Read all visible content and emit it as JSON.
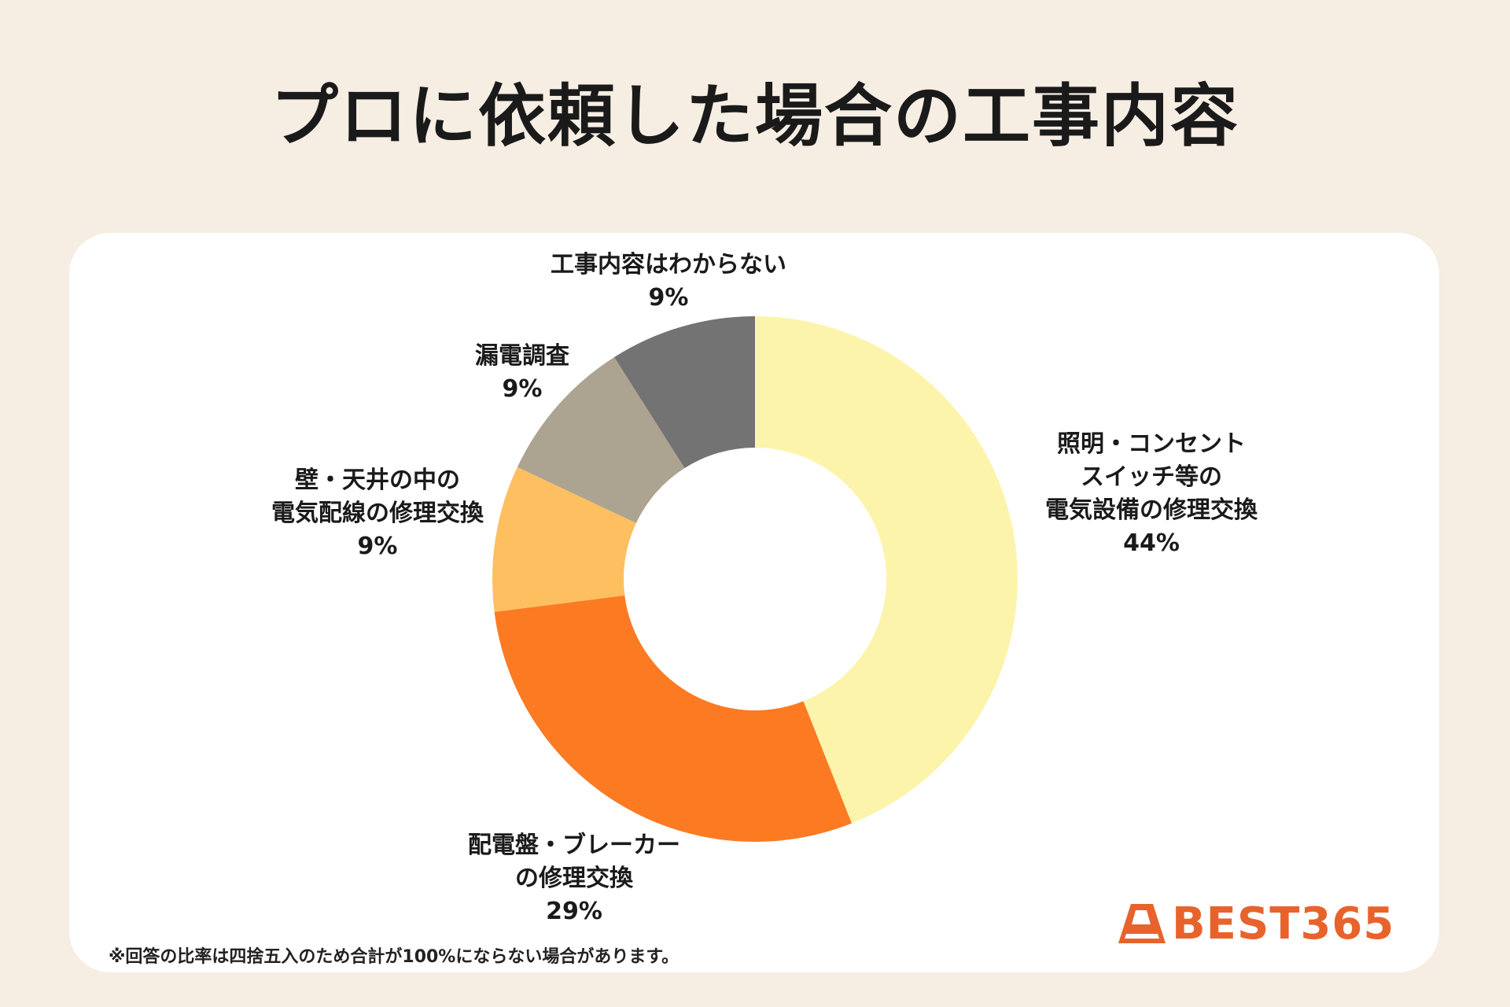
{
  "title": "プロに依頼した場合の工事内容",
  "footnote": "※回答の比率は四捨五入のため合計が100%にならない場合があります。",
  "brand": {
    "name": "BEST365",
    "color": "#e8632c"
  },
  "chart_data": {
    "type": "pie",
    "donut": true,
    "slices": [
      {
        "label_lines": [
          "照明・コンセント",
          "スイッチ等の",
          "電気設備の修理交換"
        ],
        "value": 44,
        "value_label": "44%",
        "color": "#fdf4ac"
      },
      {
        "label_lines": [
          "配電盤・ブレーカー",
          "の修理交換"
        ],
        "value": 29,
        "value_label": "29%",
        "color": "#fb7a22"
      },
      {
        "label_lines": [
          "壁・天井の中の",
          "電気配線の修理交換"
        ],
        "value": 9,
        "value_label": "9%",
        "color": "#fdbf60"
      },
      {
        "label_lines": [
          "漏電調査"
        ],
        "value": 9,
        "value_label": "9%",
        "color": "#ada391"
      },
      {
        "label_lines": [
          "工事内容はわからない"
        ],
        "value": 9,
        "value_label": "9%",
        "color": "#737373"
      }
    ]
  }
}
